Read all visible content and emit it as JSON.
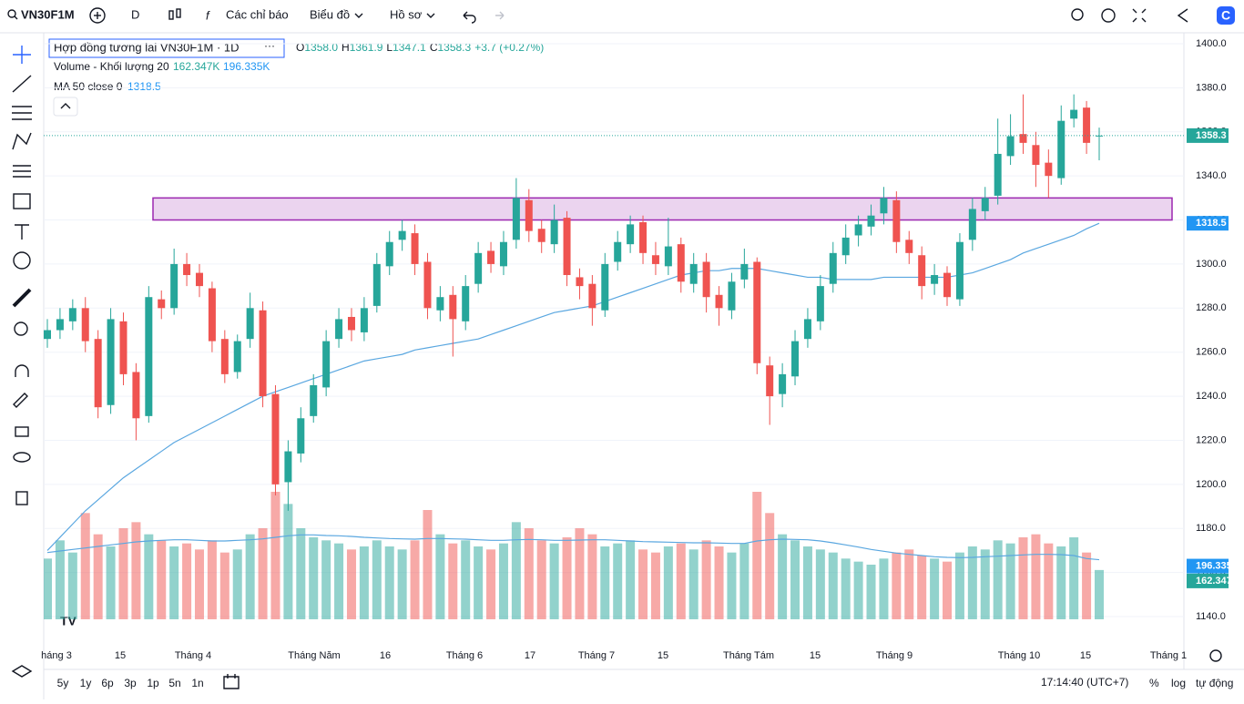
{
  "toolbar": {
    "symbol": "VN30F1M",
    "interval": "D",
    "indicators": "Các chỉ báo",
    "chart_menu": "Biểu đồ",
    "profile": "Hồ sơ"
  },
  "legend": {
    "title": "Hợp đồng tương lai VN30F1M · 1D",
    "o_label": "O",
    "o": "1358.0",
    "h_label": "H",
    "h": "1361.9",
    "l_label": "L",
    "l": "1347.1",
    "c_label": "C",
    "c": "1358.3",
    "change": "+3.7 (+0.27%)",
    "volume_title": "Volume - Khối lượng 20",
    "volume": "162.347K",
    "volume_ma": "196.335K",
    "ma_title": "MA 50 close 0",
    "ma": "1318.5"
  },
  "bottom_bar": {
    "ranges": [
      "5y",
      "1y",
      "6p",
      "3p",
      "1p",
      "5n",
      "1n"
    ],
    "clock": "17:14:40 (UTC+7)",
    "percent": "%",
    "log": "log",
    "auto": "tự động"
  },
  "chart_data": {
    "type": "candlestick",
    "x_labels": [
      "háng 3",
      "15",
      "Tháng 4",
      "Tháng Năm",
      "16",
      "Tháng 6",
      "17",
      "Tháng 7",
      "15",
      "Tháng Tám",
      "15",
      "Tháng 9",
      "Tháng 10",
      "15",
      "Tháng 1"
    ],
    "ylim": [
      1140,
      1400
    ],
    "yticks": [
      {
        "value": 1140,
        "label": "1140.0"
      },
      {
        "value": 1160,
        "label": "1160.0"
      },
      {
        "value": 1180,
        "label": "1180.0"
      },
      {
        "value": 1200,
        "label": "1200.0"
      },
      {
        "value": 1220,
        "label": "1220.0"
      },
      {
        "value": 1240,
        "label": "1240.0"
      },
      {
        "value": 1260,
        "label": "1260.0"
      },
      {
        "value": 1280,
        "label": "1280.0"
      },
      {
        "value": 1300,
        "label": "1300.0"
      },
      {
        "value": 1320,
        "label": "1320.0"
      },
      {
        "value": 1340,
        "label": "1340.0"
      },
      {
        "value": 1360,
        "label": "1360.0"
      },
      {
        "value": 1380,
        "label": "1380.0"
      },
      {
        "value": 1400,
        "label": "1400.0"
      }
    ],
    "up_color": "#26a69a",
    "down_color": "#ef5350",
    "ma_color": "#5aa7e0",
    "zone": {
      "top": 1330,
      "bottom": 1320,
      "color": "#9c27b0"
    },
    "open": [
      1266,
      1270,
      1274,
      1280,
      1266,
      1236,
      1274,
      1251,
      1231,
      1284,
      1280,
      1300,
      1296,
      1289,
      1266,
      1251,
      1266,
      1279,
      1241,
      1201,
      1214,
      1231,
      1244,
      1266,
      1276,
      1269,
      1281,
      1299,
      1311,
      1314,
      1301,
      1279,
      1286,
      1274,
      1291,
      1306,
      1299,
      1311,
      1329,
      1316,
      1309,
      1321,
      1294,
      1291,
      1279,
      1301,
      1309,
      1319,
      1304,
      1299,
      1309,
      1291,
      1301,
      1286,
      1279,
      1293,
      1301,
      1254,
      1241,
      1249,
      1266,
      1274,
      1291,
      1304,
      1313,
      1317,
      1323,
      1329,
      1311,
      1304,
      1291,
      1296,
      1284,
      1311,
      1324,
      1331,
      1349,
      1359,
      1354,
      1346,
      1339,
      1366,
      1371,
      1358.0
    ],
    "high": [
      1275,
      1280,
      1284,
      1285,
      1270,
      1280,
      1278,
      1255,
      1290,
      1288,
      1307,
      1305,
      1300,
      1292,
      1270,
      1268,
      1287,
      1283,
      1245,
      1220,
      1235,
      1250,
      1270,
      1280,
      1280,
      1285,
      1305,
      1315,
      1320,
      1318,
      1305,
      1290,
      1290,
      1295,
      1310,
      1310,
      1315,
      1339,
      1334,
      1320,
      1327,
      1324,
      1298,
      1295,
      1305,
      1315,
      1322,
      1322,
      1310,
      1321,
      1312,
      1305,
      1305,
      1290,
      1296,
      1307,
      1303,
      1258,
      1255,
      1270,
      1280,
      1295,
      1310,
      1318,
      1322,
      1327,
      1335,
      1333,
      1315,
      1308,
      1300,
      1299,
      1314,
      1330,
      1335,
      1366,
      1368,
      1377,
      1360,
      1352,
      1372,
      1377,
      1374,
      1361.9
    ],
    "low": [
      1262,
      1266,
      1270,
      1260,
      1230,
      1232,
      1245,
      1220,
      1228,
      1275,
      1277,
      1290,
      1285,
      1260,
      1246,
      1248,
      1262,
      1235,
      1195,
      1188,
      1210,
      1228,
      1240,
      1262,
      1265,
      1265,
      1278,
      1295,
      1306,
      1295,
      1275,
      1274,
      1258,
      1270,
      1287,
      1296,
      1295,
      1307,
      1310,
      1305,
      1305,
      1290,
      1284,
      1272,
      1276,
      1297,
      1305,
      1300,
      1295,
      1295,
      1287,
      1287,
      1278,
      1272,
      1275,
      1289,
      1250,
      1227,
      1235,
      1245,
      1262,
      1270,
      1287,
      1300,
      1308,
      1313,
      1318,
      1305,
      1300,
      1284,
      1286,
      1281,
      1281,
      1306,
      1320,
      1327,
      1345,
      1350,
      1335,
      1330,
      1336,
      1362,
      1350,
      1347.1
    ],
    "close": [
      1270,
      1275,
      1280,
      1265,
      1235,
      1275,
      1250,
      1230,
      1285,
      1280,
      1300,
      1295,
      1290,
      1265,
      1250,
      1265,
      1280,
      1240,
      1200,
      1215,
      1230,
      1245,
      1265,
      1275,
      1270,
      1280,
      1300,
      1310,
      1315,
      1300,
      1280,
      1285,
      1275,
      1290,
      1305,
      1300,
      1310,
      1330,
      1315,
      1310,
      1320,
      1295,
      1290,
      1280,
      1300,
      1310,
      1318,
      1305,
      1300,
      1308,
      1292,
      1300,
      1285,
      1280,
      1292,
      1300,
      1255,
      1240,
      1250,
      1265,
      1275,
      1290,
      1305,
      1312,
      1318,
      1322,
      1330,
      1310,
      1305,
      1290,
      1295,
      1285,
      1310,
      1325,
      1330,
      1350,
      1358,
      1355,
      1345,
      1340,
      1365,
      1370,
      1355,
      1358.3
    ],
    "ma50": [
      1170,
      1176,
      1182,
      1188,
      1193,
      1198,
      1203,
      1207,
      1211,
      1215,
      1219,
      1222,
      1225,
      1228,
      1231,
      1234,
      1237,
      1240,
      1242,
      1244,
      1246,
      1248,
      1250,
      1252,
      1254,
      1256,
      1257,
      1258,
      1259,
      1261,
      1262,
      1263,
      1264,
      1265,
      1266,
      1268,
      1270,
      1272,
      1274,
      1276,
      1278,
      1279,
      1280,
      1281,
      1283,
      1285,
      1287,
      1289,
      1291,
      1293,
      1295,
      1296,
      1297,
      1297,
      1298,
      1298,
      1298,
      1297,
      1296,
      1295,
      1294,
      1294,
      1293,
      1293,
      1293,
      1293,
      1294,
      1294,
      1294,
      1294,
      1294,
      1294,
      1295,
      1296,
      1298,
      1300,
      1302,
      1305,
      1307,
      1309,
      1311,
      1313,
      1316,
      1318.5
    ],
    "volume": [
      200000,
      260000,
      220000,
      350000,
      280000,
      240000,
      300000,
      320000,
      280000,
      260000,
      240000,
      250000,
      230000,
      260000,
      220000,
      230000,
      280000,
      300000,
      420000,
      380000,
      300000,
      270000,
      260000,
      250000,
      230000,
      240000,
      260000,
      240000,
      230000,
      260000,
      360000,
      280000,
      250000,
      260000,
      240000,
      230000,
      250000,
      320000,
      300000,
      260000,
      250000,
      270000,
      300000,
      280000,
      240000,
      250000,
      260000,
      230000,
      220000,
      240000,
      250000,
      230000,
      260000,
      240000,
      220000,
      250000,
      420000,
      350000,
      280000,
      260000,
      240000,
      230000,
      220000,
      200000,
      190000,
      180000,
      200000,
      220000,
      230000,
      210000,
      200000,
      190000,
      220000,
      240000,
      230000,
      260000,
      250000,
      270000,
      280000,
      250000,
      240000,
      270000,
      220000,
      162347
    ],
    "volume_ma": [
      220000,
      225000,
      230000,
      235000,
      240000,
      245000,
      250000,
      255000,
      258000,
      260000,
      262000,
      262000,
      260000,
      258000,
      258000,
      260000,
      262000,
      265000,
      270000,
      275000,
      278000,
      278000,
      276000,
      275000,
      273000,
      270000,
      268000,
      266000,
      265000,
      264000,
      266000,
      266000,
      265000,
      264000,
      262000,
      260000,
      260000,
      262000,
      263000,
      262000,
      260000,
      260000,
      261000,
      262000,
      262000,
      260000,
      258000,
      256000,
      255000,
      254000,
      253000,
      252000,
      252000,
      251000,
      250000,
      250000,
      258000,
      262000,
      264000,
      263000,
      262000,
      258000,
      252000,
      245000,
      238000,
      230000,
      224000,
      218000,
      214000,
      210000,
      206000,
      204000,
      203000,
      204000,
      206000,
      208000,
      210000,
      212000,
      214000,
      214000,
      213000,
      210000,
      200000,
      196335
    ]
  }
}
